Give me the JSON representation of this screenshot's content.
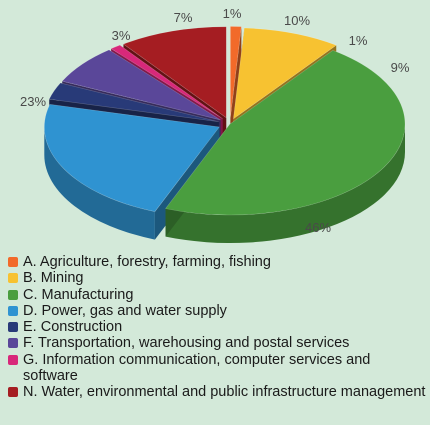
{
  "chart_data": {
    "type": "pie",
    "title": "",
    "slices": [
      {
        "label": "A. Agriculture, forestry, farming, fishing",
        "value": 1,
        "display": "1%",
        "color": "#f26a2a"
      },
      {
        "label": "B. Mining",
        "value": 9,
        "display": "9%",
        "color": "#f7c231"
      },
      {
        "label": "C. Manufacturing",
        "value": 46,
        "display": "46%",
        "color": "#4a9e3f"
      },
      {
        "label": "D. Power, gas and water supply",
        "value": 23,
        "display": "23%",
        "color": "#2f93d1"
      },
      {
        "label": "E. Construction",
        "value": 3,
        "display": "3%",
        "color": "#283a78"
      },
      {
        "label": "F. Transportation, warehousing and postal services",
        "value": 7,
        "display": "7%",
        "color": "#5a4799"
      },
      {
        "label": "G. Information communication, computer services and software",
        "value": 1,
        "display": "1%",
        "color": "#d8287a"
      },
      {
        "label": "N. Water, environmental and public infrastructure management",
        "value": 10,
        "display": "10%",
        "color": "#a51d22"
      }
    ],
    "legend_position": "bottom"
  },
  "legend": {
    "items": [
      {
        "text": "A. Agriculture, forestry, farming, fishing",
        "color": "#f26a2a"
      },
      {
        "text": "B. Mining",
        "color": "#f7c231"
      },
      {
        "text": "C. Manufacturing",
        "color": "#4a9e3f"
      },
      {
        "text": "D. Power, gas and water supply",
        "color": "#2f93d1"
      },
      {
        "text": "E. Construction",
        "color": "#283a78"
      },
      {
        "text": "F. Transportation, warehousing and postal services",
        "color": "#5a4799"
      },
      {
        "text": "G. Information communication, computer services and software",
        "color": "#d8287a"
      },
      {
        "text": "N. Water, environmental and public infrastructure management",
        "color": "#a51d22"
      }
    ]
  }
}
